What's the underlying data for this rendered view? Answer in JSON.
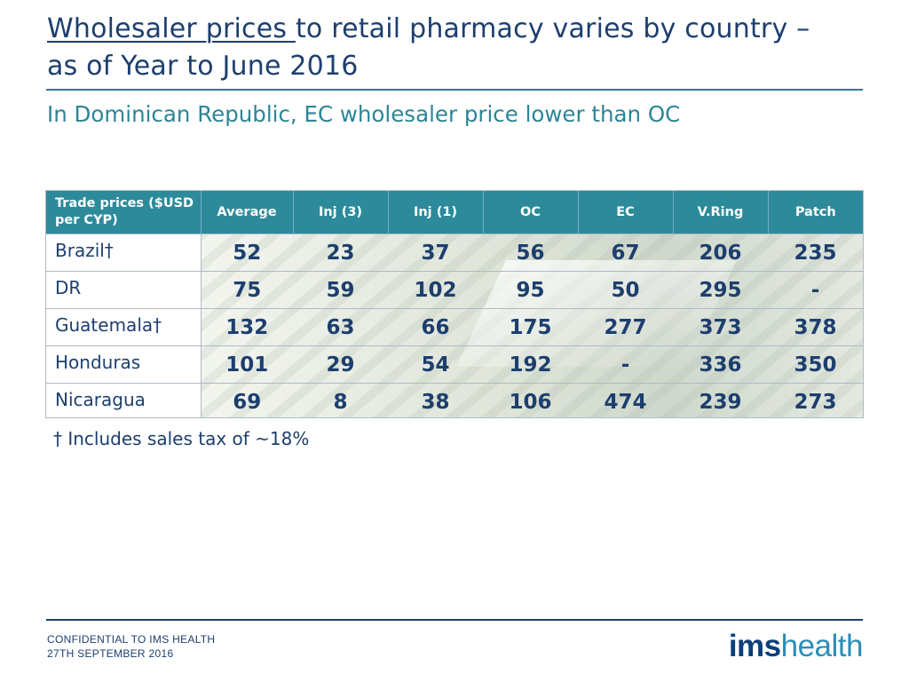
{
  "title": {
    "link_text": "Wholesaler prices ",
    "rest": "to retail pharmacy varies by country – as of Year to June 2016"
  },
  "subtitle": "In Dominican Republic, EC wholesaler price lower than OC",
  "table": {
    "headers": [
      "Trade prices ($USD per CYP)",
      "Average",
      "Inj (3)",
      "Inj (1)",
      "OC",
      "EC",
      "V.Ring",
      "Patch"
    ],
    "rows": [
      {
        "country": "Brazil†",
        "values": [
          "52",
          "23",
          "37",
          "56",
          "67",
          "206",
          "235"
        ]
      },
      {
        "country": "DR",
        "values": [
          "75",
          "59",
          "102",
          "95",
          "50",
          "295",
          "-"
        ]
      },
      {
        "country": "Guatemala†",
        "values": [
          "132",
          "63",
          "66",
          "175",
          "277",
          "373",
          "378"
        ]
      },
      {
        "country": "Honduras",
        "values": [
          "101",
          "29",
          "54",
          "192",
          "-",
          "336",
          "350"
        ]
      },
      {
        "country": "Nicaragua",
        "values": [
          "69",
          "8",
          "38",
          "106",
          "474",
          "239",
          "273"
        ]
      }
    ]
  },
  "footnote": "† Includes sales tax of ~18%",
  "footer": {
    "line1": "CONFIDENTIAL TO IMS HEALTH",
    "line2": "27TH SEPTEMBER 2016"
  },
  "logo": {
    "part1": "ims",
    "part2": "health"
  },
  "colors": {
    "header_bg": "#2d8a9b",
    "text": "#1d3f6e",
    "accent": "#2c8597"
  }
}
